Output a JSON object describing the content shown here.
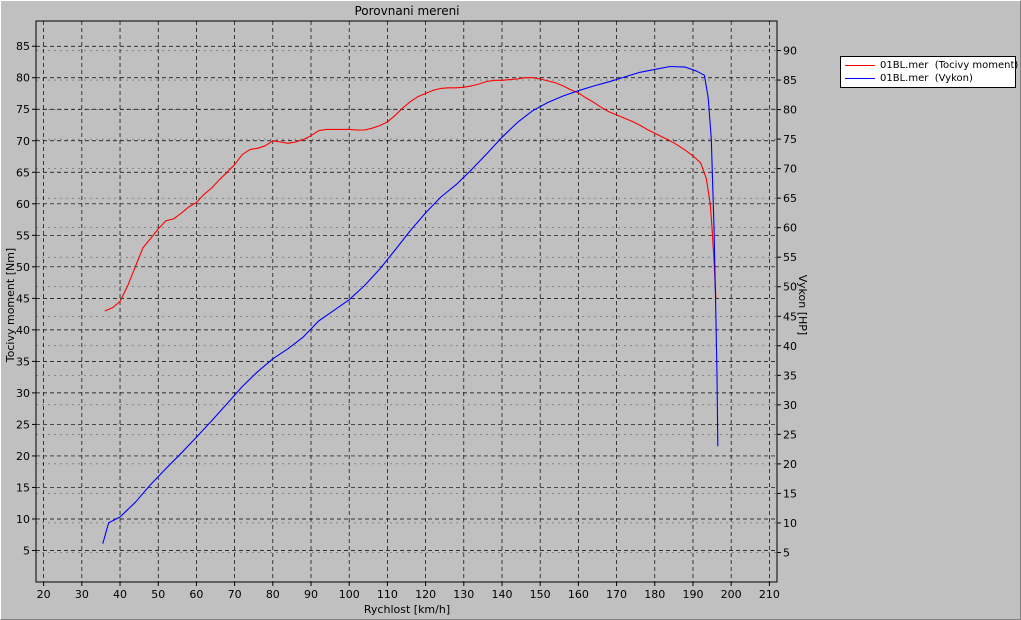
{
  "legend": {
    "items": [
      {
        "label": "01BL.mer  (Tocivy moment)",
        "color": "#ff0000"
      },
      {
        "label": "01BL.mer  (Vykon)",
        "color": "#0000ff"
      }
    ]
  },
  "chart_data": {
    "type": "line",
    "title": "Porovnani mereni",
    "xlabel": "Rychlost [km/h]",
    "ylabel": "Tocivy moment [Nm]",
    "y2label": "Vykon [HP]",
    "xlim": [
      18,
      212
    ],
    "ylim": [
      0,
      89
    ],
    "y2lim": [
      0,
      95
    ],
    "xticks": [
      20,
      30,
      40,
      50,
      60,
      70,
      80,
      90,
      100,
      110,
      120,
      130,
      140,
      150,
      160,
      170,
      180,
      190,
      200,
      210
    ],
    "yticks": [
      5,
      10,
      15,
      20,
      25,
      30,
      35,
      40,
      45,
      50,
      55,
      60,
      65,
      70,
      75,
      80,
      85
    ],
    "y2ticks": [
      5,
      10,
      15,
      20,
      25,
      30,
      35,
      40,
      45,
      50,
      55,
      60,
      65,
      70,
      75,
      80,
      85,
      90
    ],
    "grid": true,
    "background": "#c0c0c0",
    "series": [
      {
        "name": "01BL.mer  (Tocivy moment)",
        "axis": "left",
        "color": "#ff0000",
        "x": [
          36,
          38,
          40,
          42,
          44,
          46,
          48,
          50,
          52,
          54,
          56,
          58,
          60,
          62,
          64,
          66,
          68,
          70,
          72,
          74,
          76,
          78,
          80,
          82,
          84,
          86,
          88,
          90,
          92,
          94,
          96,
          98,
          100,
          102,
          104,
          106,
          108,
          110,
          112,
          114,
          116,
          118,
          120,
          122,
          124,
          126,
          128,
          130,
          132,
          134,
          136,
          138,
          140,
          142,
          144,
          146,
          148,
          150,
          152,
          154,
          156,
          158,
          160,
          162,
          164,
          166,
          168,
          170,
          172,
          174,
          176,
          178,
          180,
          182,
          184,
          186,
          188,
          190,
          192,
          193.5,
          194.5,
          195,
          195.5,
          196
        ],
        "y": [
          43,
          43.5,
          44.5,
          47,
          50,
          53,
          54.5,
          56,
          57.3,
          57.6,
          58.5,
          59.5,
          60.2,
          61.5,
          62.5,
          63.8,
          65,
          66.2,
          67.8,
          68.6,
          68.8,
          69.2,
          70,
          69.8,
          69.6,
          69.8,
          70.2,
          70.8,
          71.6,
          71.8,
          71.8,
          71.8,
          71.8,
          71.7,
          71.7,
          72,
          72.4,
          73,
          74,
          75.2,
          76.2,
          77,
          77.5,
          78,
          78.3,
          78.4,
          78.4,
          78.5,
          78.7,
          79,
          79.4,
          79.6,
          79.6,
          79.7,
          79.8,
          80,
          80,
          79.8,
          79.5,
          79.2,
          78.7,
          78.1,
          77.6,
          76.8,
          76.1,
          75.3,
          74.6,
          74.1,
          73.6,
          73.1,
          72.5,
          71.8,
          71.2,
          70.6,
          70,
          69.3,
          68.5,
          67.6,
          66.5,
          64,
          60,
          56,
          51,
          45
        ]
      },
      {
        "name": "01BL.mer  (Vykon)",
        "axis": "right",
        "color": "#0000ff",
        "x": [
          35.5,
          37,
          40,
          44,
          48,
          52,
          56,
          60,
          64,
          68,
          72,
          76,
          80,
          84,
          88,
          92,
          96,
          100,
          104,
          108,
          112,
          116,
          120,
          124,
          128,
          132,
          136,
          140,
          144,
          148,
          152,
          156,
          160,
          164,
          168,
          172,
          176,
          180,
          184,
          188,
          191,
          193,
          194,
          194.8,
          195.5,
          196,
          196.3,
          196.5
        ],
        "y": [
          6.5,
          10,
          11,
          13.5,
          16.5,
          19.2,
          21.8,
          24.5,
          27.3,
          30.2,
          33.1,
          35.6,
          37.8,
          39.5,
          41.5,
          44.2,
          46,
          47.8,
          50.2,
          53,
          56.2,
          59.5,
          62.5,
          65.2,
          67.3,
          69.8,
          72.5,
          75.3,
          77.8,
          79.8,
          81.2,
          82.3,
          83.2,
          84,
          84.7,
          85.5,
          86.3,
          86.8,
          87.3,
          87.2,
          86.5,
          85.8,
          82,
          75,
          60,
          45,
          35,
          23
        ]
      }
    ]
  }
}
